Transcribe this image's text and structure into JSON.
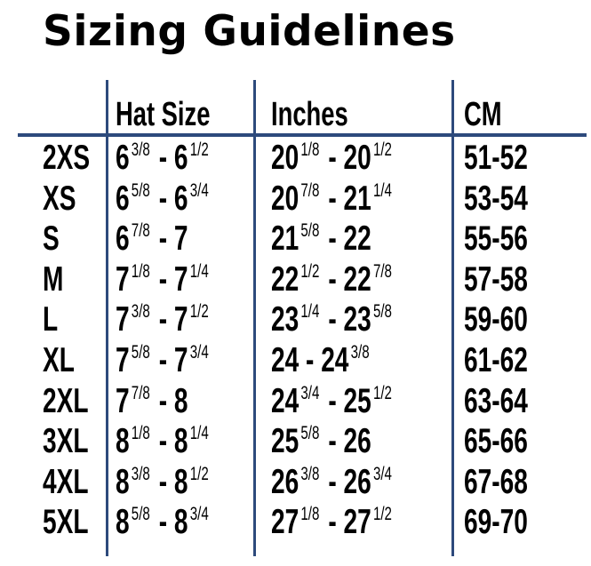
{
  "title": "Sizing Guidelines",
  "colors": {
    "rule": "#2d4a7c",
    "text": "#000000"
  },
  "table": {
    "headers": [
      "",
      "Hat Size",
      "Inches",
      "CM"
    ],
    "rows": [
      {
        "size": "2XS",
        "hat": [
          [
            "6",
            "3/8"
          ],
          [
            " - 6",
            "1/2"
          ]
        ],
        "inches": [
          [
            "20",
            "1/8"
          ],
          [
            " - 20",
            "1/2"
          ]
        ],
        "cm": "51-52"
      },
      {
        "size": "XS",
        "hat": [
          [
            "6",
            "5/8"
          ],
          [
            " - 6",
            "3/4"
          ]
        ],
        "inches": [
          [
            "20",
            "7/8"
          ],
          [
            " - 21",
            "1/4"
          ]
        ],
        "cm": "53-54"
      },
      {
        "size": "S",
        "hat": [
          [
            "6",
            "7/8"
          ],
          [
            " - 7",
            ""
          ]
        ],
        "inches": [
          [
            "21",
            "5/8"
          ],
          [
            " - 22",
            ""
          ]
        ],
        "cm": "55-56"
      },
      {
        "size": "M",
        "hat": [
          [
            "7",
            "1/8"
          ],
          [
            " - 7",
            "1/4"
          ]
        ],
        "inches": [
          [
            "22",
            "1/2"
          ],
          [
            " - 22",
            "7/8"
          ]
        ],
        "cm": "57-58"
      },
      {
        "size": "L",
        "hat": [
          [
            "7",
            "3/8"
          ],
          [
            " - 7",
            "1/2"
          ]
        ],
        "inches": [
          [
            "23",
            "1/4"
          ],
          [
            " - 23",
            "5/8"
          ]
        ],
        "cm": "59-60"
      },
      {
        "size": "XL",
        "hat": [
          [
            "7",
            "5/8"
          ],
          [
            " - 7",
            "3/4"
          ]
        ],
        "inches": [
          [
            "24",
            ""
          ],
          [
            " - 24",
            "3/8"
          ]
        ],
        "cm": "61-62"
      },
      {
        "size": "2XL",
        "hat": [
          [
            "7",
            "7/8"
          ],
          [
            " - 8",
            ""
          ]
        ],
        "inches": [
          [
            "24",
            "3/4"
          ],
          [
            " - 25",
            "1/2"
          ]
        ],
        "cm": "63-64"
      },
      {
        "size": "3XL",
        "hat": [
          [
            "8",
            "1/8"
          ],
          [
            " - 8",
            "1/4"
          ]
        ],
        "inches": [
          [
            "25",
            "5/8"
          ],
          [
            " - 26",
            ""
          ]
        ],
        "cm": "65-66"
      },
      {
        "size": "4XL",
        "hat": [
          [
            "8",
            "3/8"
          ],
          [
            " - 8",
            "1/2"
          ]
        ],
        "inches": [
          [
            "26",
            "3/8"
          ],
          [
            " - 26",
            "3/4"
          ]
        ],
        "cm": "67-68"
      },
      {
        "size": "5XL",
        "hat": [
          [
            "8",
            "5/8"
          ],
          [
            " - 8",
            "3/4"
          ]
        ],
        "inches": [
          [
            "27",
            "1/8"
          ],
          [
            " - 27",
            "1/2"
          ]
        ],
        "cm": "69-70"
      }
    ]
  }
}
